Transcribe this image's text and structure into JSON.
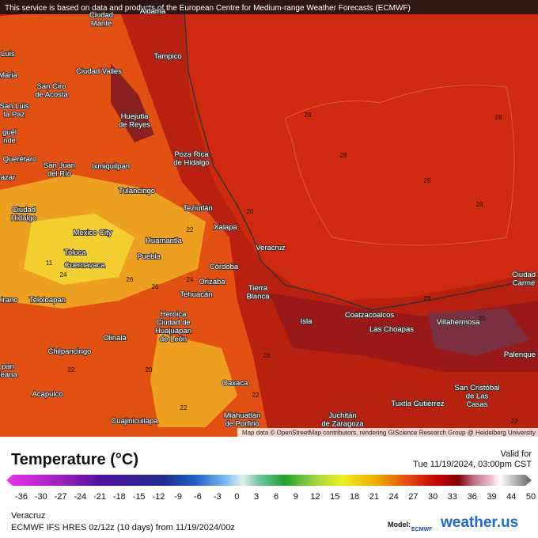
{
  "header": {
    "notice": "This service is based on data and products of the European Centre for Medium-range Weather Forecasts (ECMWF)"
  },
  "map": {
    "cities": [
      {
        "lines": [
          "Ciudad",
          "Mante"
        ]
      },
      {
        "lines": [
          "Aldama"
        ]
      },
      {
        "lines": [
          "Tampico"
        ]
      },
      {
        "lines": [
          "Luis"
        ]
      },
      {
        "lines": [
          "Maria"
        ]
      },
      {
        "lines": [
          "Ciudad Valles"
        ]
      },
      {
        "lines": [
          "San Ciro",
          "de Acosta"
        ]
      },
      {
        "lines": [
          "Huejutla",
          "de Reyes"
        ]
      },
      {
        "lines": [
          "San Luis",
          "la Paz"
        ]
      },
      {
        "lines": [
          "guel",
          "nde"
        ]
      },
      {
        "lines": [
          "Querétaro"
        ]
      },
      {
        "lines": [
          "San Juan",
          "del Río"
        ]
      },
      {
        "lines": [
          "Ixmiquilpan"
        ]
      },
      {
        "lines": [
          "Poza Rica",
          "de Hidalgo"
        ]
      },
      {
        "lines": [
          "azar"
        ]
      },
      {
        "lines": [
          "Tulancingo"
        ]
      },
      {
        "lines": [
          "Ciudad",
          "Hidalgo"
        ]
      },
      {
        "lines": [
          "Teziutlán"
        ]
      },
      {
        "lines": [
          "Xalapa"
        ]
      },
      {
        "lines": [
          "Mexico City"
        ]
      },
      {
        "lines": [
          "Huamantla"
        ]
      },
      {
        "lines": [
          "Veracruz"
        ]
      },
      {
        "lines": [
          "Toluca"
        ]
      },
      {
        "lines": [
          "Puebla"
        ]
      },
      {
        "lines": [
          "Cuernavaca"
        ]
      },
      {
        "lines": [
          "Córdoba"
        ]
      },
      {
        "lines": [
          "Orizaba"
        ]
      },
      {
        "lines": [
          "Tierra",
          "Blanca"
        ]
      },
      {
        "lines": [
          "Tehuacán"
        ]
      },
      {
        "lines": [
          "Teloloapan"
        ]
      },
      {
        "lines": [
          "irano"
        ]
      },
      {
        "lines": [
          "Coatzacoalcos"
        ]
      },
      {
        "lines": [
          "Villahermosa"
        ]
      },
      {
        "lines": [
          "Ciudad",
          "Carme"
        ]
      },
      {
        "lines": [
          "Isla"
        ]
      },
      {
        "lines": [
          "Heroica",
          "Ciudad de",
          "Huajuapan",
          "de León"
        ]
      },
      {
        "lines": [
          "Las Choapas"
        ]
      },
      {
        "lines": [
          "Olinalá"
        ]
      },
      {
        "lines": [
          "Palenque"
        ]
      },
      {
        "lines": [
          "Chilpancingo"
        ]
      },
      {
        "lines": [
          "pan",
          "leana"
        ]
      },
      {
        "lines": [
          "Oaxaca"
        ]
      },
      {
        "lines": [
          "San Cristóbal",
          "de Las",
          "Casas"
        ]
      },
      {
        "lines": [
          "Acapulco"
        ]
      },
      {
        "lines": [
          "Tuxtla Gutiérrez"
        ]
      },
      {
        "lines": [
          "Miahuatlán",
          "de Porfirio"
        ]
      },
      {
        "lines": [
          "Juchitán",
          "de Zaragoza"
        ]
      },
      {
        "lines": [
          "Cuajinicuilapa"
        ]
      }
    ],
    "contour_labels": [
      28,
      28,
      28,
      28,
      28,
      20,
      26,
      11,
      35,
      24,
      22,
      22,
      20,
      26,
      22,
      24,
      22,
      28,
      26,
      22
    ],
    "attribution": "Map data © OpenStreetMap contributors, rendering GIScience Research Group @ Heidelberg University"
  },
  "legend": {
    "title": "Temperature (°C)",
    "valid_label": "Valid for",
    "valid_time": "Tue 11/19/2024, 03:00pm CST",
    "ticks": [
      -36,
      -30,
      -27,
      -24,
      -21,
      -18,
      -15,
      -12,
      -9,
      -6,
      -3,
      0,
      3,
      6,
      9,
      12,
      15,
      18,
      21,
      24,
      27,
      30,
      33,
      36,
      39,
      44,
      50
    ]
  },
  "footer": {
    "location": "Veracruz",
    "model_run": "ECMWF IFS HRES 0z/12z (10 days) from 11/19/2024/00z",
    "model_label": "Model:",
    "model_name": "ECMWF",
    "brand": "weather.us"
  }
}
